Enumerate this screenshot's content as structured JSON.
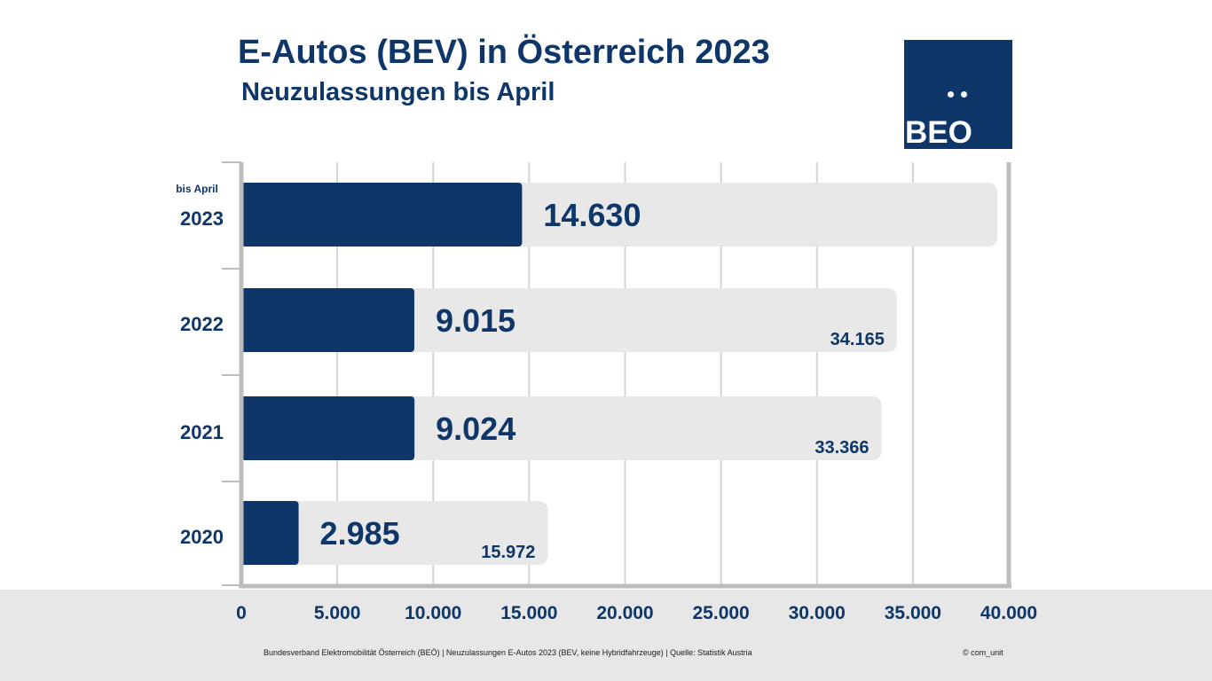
{
  "header": {
    "title": "E-Autos (BEV) in Österreich 2023",
    "subtitle": "Neuzulassungen bis April"
  },
  "logo": {
    "text": "BEO"
  },
  "chart_data": {
    "type": "bar",
    "orientation": "horizontal",
    "categories": [
      "2023",
      "2022",
      "2021",
      "2020"
    ],
    "category_notes": {
      "2023": "bis April"
    },
    "series": [
      {
        "values": [
          14630,
          9015,
          9024,
          2985
        ],
        "labels": [
          "14.630",
          "9.015",
          "9.024",
          "2.985"
        ],
        "color": "#0e3668"
      },
      {
        "values": [
          39400,
          34165,
          33366,
          15972
        ],
        "labels": [
          "",
          "34.165",
          "33.366",
          "15.972"
        ],
        "color": "#e8e8e8"
      }
    ],
    "xlim": [
      0,
      40000
    ],
    "x_ticks": [
      0,
      5000,
      10000,
      15000,
      20000,
      25000,
      30000,
      35000,
      40000
    ],
    "x_tick_labels": [
      "0",
      "5.000",
      "10.000",
      "15.000",
      "20.000",
      "25.000",
      "30.000",
      "35.000",
      "40.000"
    ],
    "grid": true
  },
  "footer": {
    "source": "Bundesverband Elektromobilität Österreich (BEÖ) | Neuzulassungen E-Autos 2023 (BEV, keine Hybridfahrzeuge) | Quelle: Statistik Austria",
    "copyright": "© com_unit"
  }
}
